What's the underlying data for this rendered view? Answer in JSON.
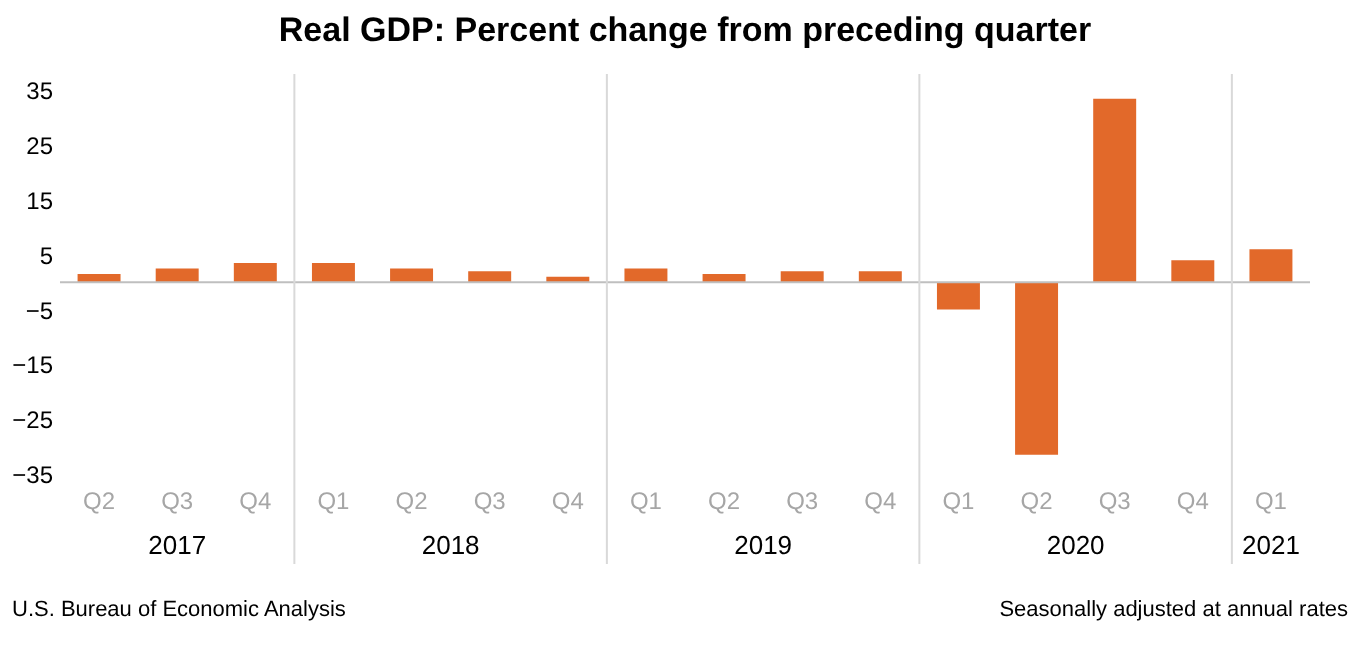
{
  "chart_data": {
    "type": "bar",
    "title": "Real GDP:  Percent change from preceding quarter",
    "categories": [
      "Q2",
      "Q3",
      "Q4",
      "Q1",
      "Q2",
      "Q3",
      "Q4",
      "Q1",
      "Q2",
      "Q3",
      "Q4",
      "Q1",
      "Q2",
      "Q3",
      "Q4",
      "Q1"
    ],
    "values": [
      1.5,
      2.5,
      3.5,
      3.5,
      2.5,
      2,
      1,
      2.5,
      1.5,
      2,
      2,
      -5,
      -31.5,
      33.5,
      4,
      6
    ],
    "color": "#e2692a",
    "ylim": [
      -35,
      38
    ],
    "yticks": [
      -35,
      -25,
      -15,
      -5,
      5,
      15,
      25,
      35
    ],
    "ref_lines": [
      {
        "axis": "y",
        "value": 0,
        "color": "#bfbfbf"
      }
    ],
    "annotations": [
      "2017",
      "2018",
      "2019",
      "2020",
      "2021",
      "U.S. Bureau of Economic Analysis",
      "Seasonally adjusted at annual rates"
    ]
  }
}
